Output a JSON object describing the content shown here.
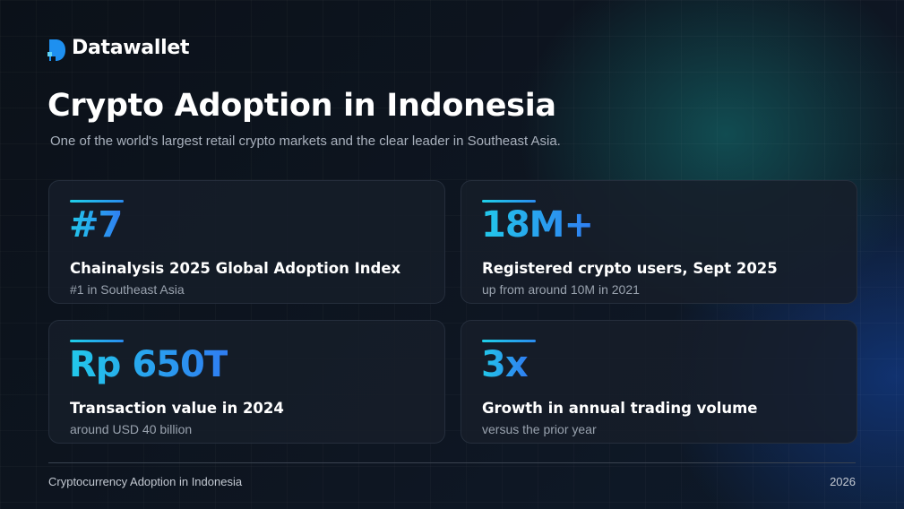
{
  "brand": "Datawallet",
  "header": {
    "title": "Crypto Adoption in Indonesia",
    "subtitle": "One of the world's largest retail crypto markets and the clear leader in Southeast Asia."
  },
  "cards": [
    {
      "stat": "#7",
      "label": "Chainalysis 2025 Global Adoption Index",
      "note": "#1 in Southeast Asia"
    },
    {
      "stat": "18M+",
      "label": "Registered crypto users, Sept 2025",
      "note": "up from around 10M in 2021"
    },
    {
      "stat": "Rp 650T",
      "label": "Transaction value in 2024",
      "note": "around USD 40 billion"
    },
    {
      "stat": "3x",
      "label": "Growth in annual trading volume",
      "note": "versus the prior year"
    }
  ],
  "footer": {
    "left": "Cryptocurrency Adoption in Indonesia",
    "right": "2026"
  }
}
